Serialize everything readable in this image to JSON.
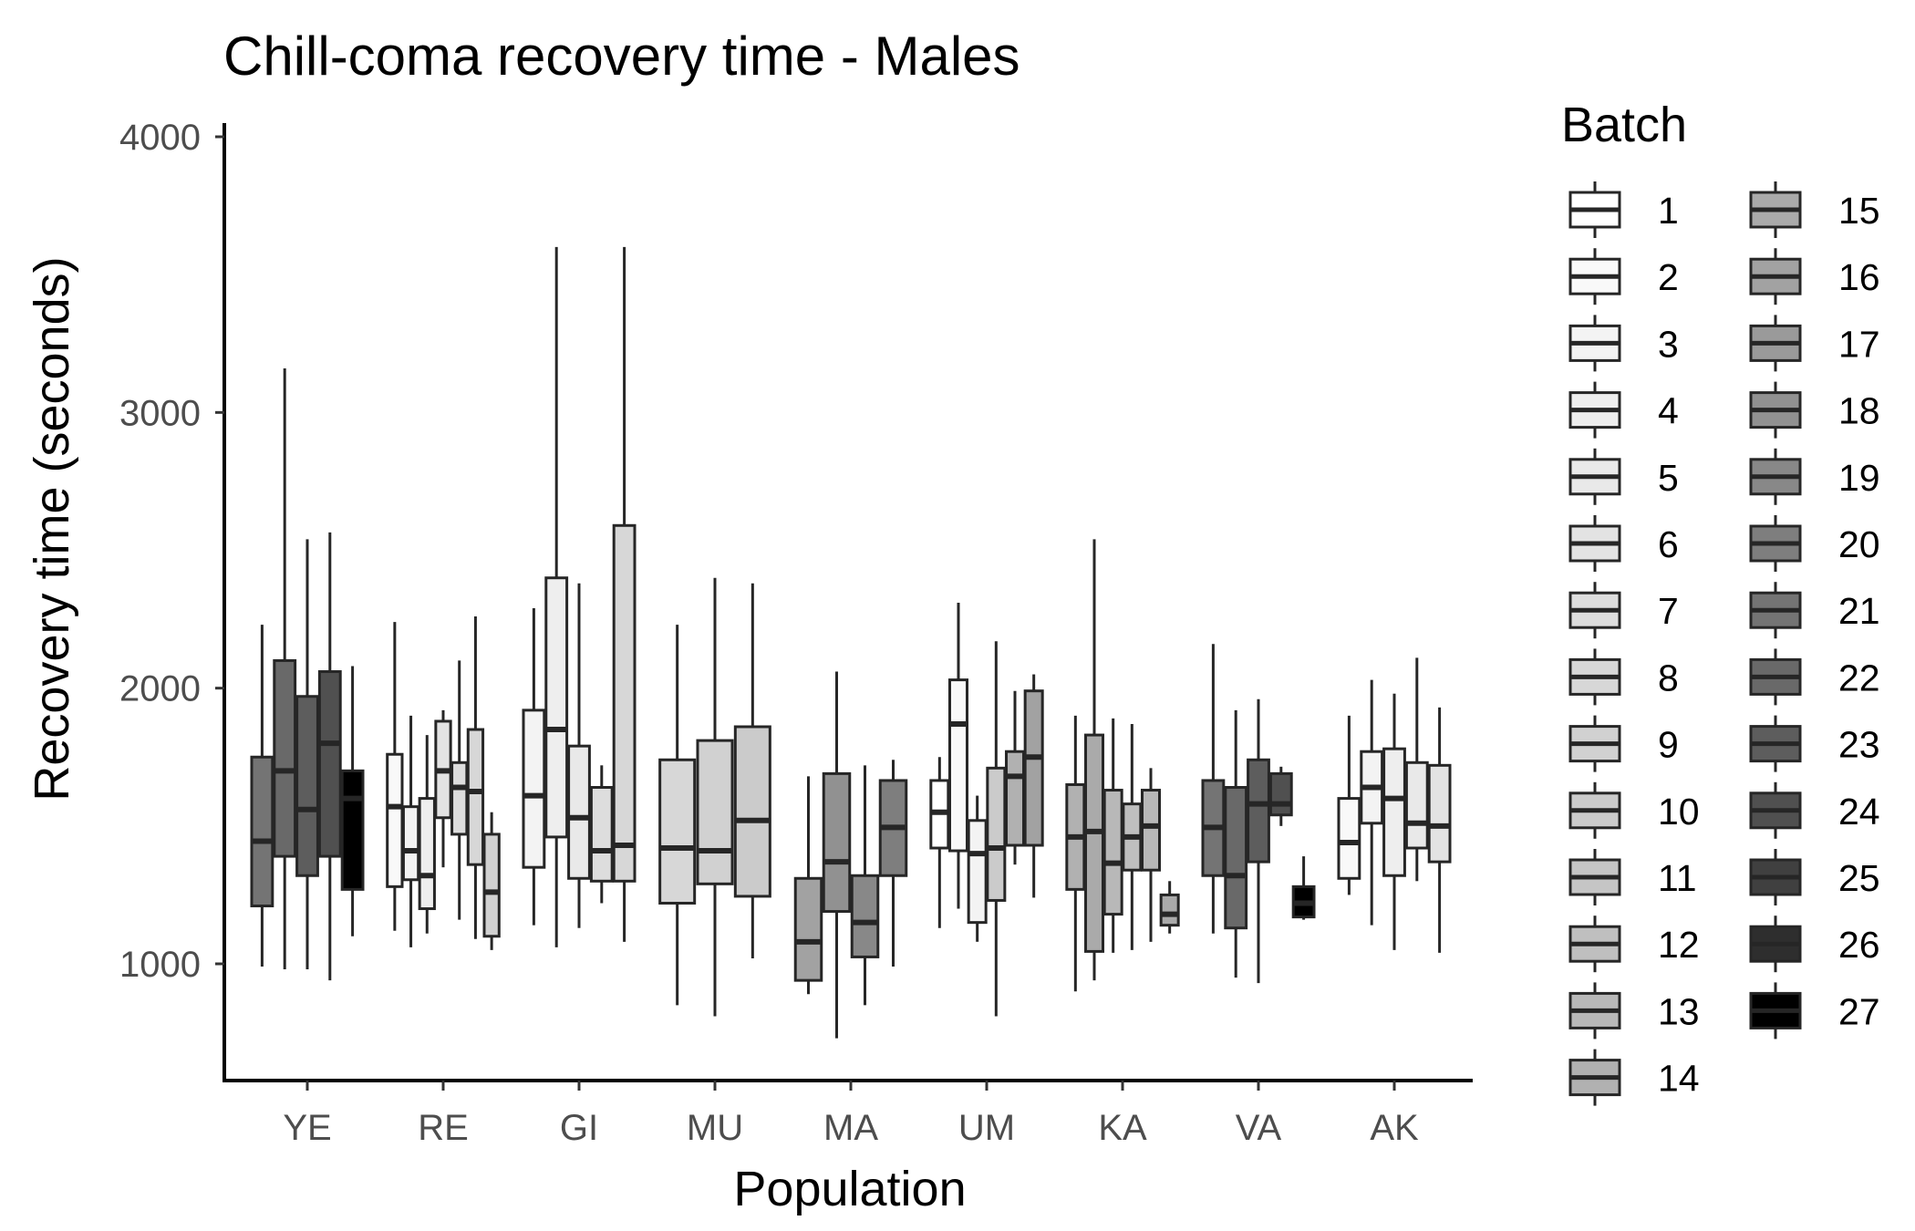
{
  "chart_data": {
    "type": "box",
    "title": "Chill-coma recovery time - Males",
    "xlabel": "Population",
    "ylabel": "Recovery time (seconds)",
    "ylim": [
      570,
      4030
    ],
    "yticks": [
      1000,
      2000,
      3000,
      4000
    ],
    "grid": false,
    "legend": {
      "title": "Batch",
      "position": "right",
      "columns": 2
    },
    "categories": [
      "YE",
      "RE",
      "GI",
      "MU",
      "MA",
      "UM",
      "KA",
      "VA",
      "AK"
    ],
    "batches": [
      "1",
      "2",
      "3",
      "4",
      "5",
      "6",
      "7",
      "8",
      "9",
      "10",
      "11",
      "12",
      "13",
      "14",
      "15",
      "16",
      "17",
      "18",
      "19",
      "20",
      "21",
      "22",
      "23",
      "24",
      "25",
      "26",
      "27"
    ],
    "batch_colors": [
      "#ffffff",
      "#f9f9f9",
      "#f3f3f3",
      "#eeeeee",
      "#e9e9e9",
      "#e3e3e3",
      "#dddddd",
      "#d7d7d7",
      "#d1d1d1",
      "#cbcbcb",
      "#c5c5c5",
      "#bfbfbf",
      "#b8b8b8",
      "#b1b1b1",
      "#aaaaaa",
      "#a2a2a2",
      "#9a9a9a",
      "#919191",
      "#888888",
      "#7e7e7e",
      "#747474",
      "#696969",
      "#5d5d5d",
      "#505050",
      "#404040",
      "#2e2e2e",
      "#000000"
    ],
    "groups": [
      {
        "population": "YE",
        "boxes": [
          {
            "batch": "21",
            "min": 990,
            "q1": 1210,
            "median": 1445,
            "q3": 1750,
            "max": 2230
          },
          {
            "batch": "22",
            "min": 980,
            "q1": 1390,
            "median": 1700,
            "q3": 2100,
            "max": 3160
          },
          {
            "batch": "23",
            "min": 980,
            "q1": 1320,
            "median": 1560,
            "q3": 1970,
            "max": 2540
          },
          {
            "batch": "24",
            "min": 940,
            "q1": 1390,
            "median": 1800,
            "q3": 2060,
            "max": 2565
          },
          {
            "batch": "27",
            "min": 1100,
            "q1": 1270,
            "median": 1600,
            "q3": 1700,
            "max": 2080
          }
        ]
      },
      {
        "population": "RE",
        "boxes": [
          {
            "batch": "2",
            "min": 1120,
            "q1": 1280,
            "median": 1570,
            "q3": 1760,
            "max": 2240
          },
          {
            "batch": "3",
            "min": 1060,
            "q1": 1305,
            "median": 1410,
            "q3": 1570,
            "max": 1900
          },
          {
            "batch": "4",
            "min": 1110,
            "q1": 1200,
            "median": 1320,
            "q3": 1600,
            "max": 1830
          },
          {
            "batch": "6",
            "min": 1350,
            "q1": 1530,
            "median": 1700,
            "q3": 1880,
            "max": 1920
          },
          {
            "batch": "7",
            "min": 1160,
            "q1": 1470,
            "median": 1640,
            "q3": 1730,
            "max": 2100
          },
          {
            "batch": "8",
            "min": 1090,
            "q1": 1360,
            "median": 1625,
            "q3": 1850,
            "max": 2260
          },
          {
            "batch": "9",
            "min": 1050,
            "q1": 1100,
            "median": 1260,
            "q3": 1470,
            "max": 1550
          }
        ]
      },
      {
        "population": "GI",
        "boxes": [
          {
            "batch": "3",
            "min": 1140,
            "q1": 1350,
            "median": 1610,
            "q3": 1920,
            "max": 2290
          },
          {
            "batch": "4",
            "min": 1060,
            "q1": 1460,
            "median": 1850,
            "q3": 2400,
            "max": 3600
          },
          {
            "batch": "5",
            "min": 1130,
            "q1": 1310,
            "median": 1530,
            "q3": 1790,
            "max": 2380
          },
          {
            "batch": "7",
            "min": 1220,
            "q1": 1300,
            "median": 1410,
            "q3": 1640,
            "max": 1720
          },
          {
            "batch": "8",
            "min": 1080,
            "q1": 1300,
            "median": 1430,
            "q3": 2590,
            "max": 3600
          }
        ]
      },
      {
        "population": "MU",
        "boxes": [
          {
            "batch": "8",
            "min": 850,
            "q1": 1220,
            "median": 1420,
            "q3": 1740,
            "max": 2230
          },
          {
            "batch": "9",
            "min": 810,
            "q1": 1290,
            "median": 1410,
            "q3": 1810,
            "max": 2400
          },
          {
            "batch": "10",
            "min": 1020,
            "q1": 1245,
            "median": 1520,
            "q3": 1860,
            "max": 2380
          }
        ]
      },
      {
        "population": "MA",
        "boxes": [
          {
            "batch": "16",
            "min": 890,
            "q1": 940,
            "median": 1080,
            "q3": 1310,
            "max": 1680
          },
          {
            "batch": "18",
            "min": 730,
            "q1": 1190,
            "median": 1370,
            "q3": 1690,
            "max": 2060
          },
          {
            "batch": "19",
            "min": 850,
            "q1": 1025,
            "median": 1150,
            "q3": 1320,
            "max": 1720
          },
          {
            "batch": "20",
            "min": 990,
            "q1": 1320,
            "median": 1495,
            "q3": 1665,
            "max": 1740
          }
        ]
      },
      {
        "population": "UM",
        "boxes": [
          {
            "batch": "1",
            "min": 1130,
            "q1": 1420,
            "median": 1550,
            "q3": 1665,
            "max": 1750
          },
          {
            "batch": "2",
            "min": 1200,
            "q1": 1410,
            "median": 1870,
            "q3": 2030,
            "max": 2310
          },
          {
            "batch": "3",
            "min": 1080,
            "q1": 1150,
            "median": 1400,
            "q3": 1520,
            "max": 1610
          },
          {
            "batch": "10",
            "min": 810,
            "q1": 1230,
            "median": 1420,
            "q3": 1710,
            "max": 2170
          },
          {
            "batch": "14",
            "min": 1360,
            "q1": 1430,
            "median": 1680,
            "q3": 1770,
            "max": 1990
          },
          {
            "batch": "16",
            "min": 1240,
            "q1": 1430,
            "median": 1750,
            "q3": 1990,
            "max": 2050
          }
        ]
      },
      {
        "population": "KA",
        "boxes": [
          {
            "batch": "14",
            "min": 900,
            "q1": 1270,
            "median": 1460,
            "q3": 1650,
            "max": 1900
          },
          {
            "batch": "15",
            "min": 940,
            "q1": 1045,
            "median": 1480,
            "q3": 1830,
            "max": 2540
          },
          {
            "batch": "13",
            "min": 1040,
            "q1": 1180,
            "median": 1365,
            "q3": 1630,
            "max": 1890
          },
          {
            "batch": "12",
            "min": 1050,
            "q1": 1340,
            "median": 1460,
            "q3": 1580,
            "max": 1870
          },
          {
            "batch": "13",
            "min": 1080,
            "q1": 1340,
            "median": 1500,
            "q3": 1630,
            "max": 1710
          },
          {
            "batch": "15",
            "min": 1110,
            "q1": 1140,
            "median": 1180,
            "q3": 1250,
            "max": 1300
          }
        ]
      },
      {
        "population": "VA",
        "boxes": [
          {
            "batch": "21",
            "min": 1110,
            "q1": 1320,
            "median": 1495,
            "q3": 1665,
            "max": 2160
          },
          {
            "batch": "22",
            "min": 950,
            "q1": 1130,
            "median": 1320,
            "q3": 1640,
            "max": 1920
          },
          {
            "batch": "23",
            "min": 930,
            "q1": 1370,
            "median": 1580,
            "q3": 1740,
            "max": 1960
          },
          {
            "batch": "24",
            "min": 1500,
            "q1": 1540,
            "median": 1580,
            "q3": 1690,
            "max": 1715
          },
          {
            "batch": "27",
            "min": 1160,
            "q1": 1170,
            "median": 1220,
            "q3": 1280,
            "max": 1390
          }
        ]
      },
      {
        "population": "AK",
        "boxes": [
          {
            "batch": "2",
            "min": 1250,
            "q1": 1310,
            "median": 1440,
            "q3": 1600,
            "max": 1900
          },
          {
            "batch": "3",
            "min": 1140,
            "q1": 1510,
            "median": 1640,
            "q3": 1770,
            "max": 2030
          },
          {
            "batch": "4",
            "min": 1050,
            "q1": 1320,
            "median": 1600,
            "q3": 1780,
            "max": 1980
          },
          {
            "batch": "5",
            "min": 1300,
            "q1": 1420,
            "median": 1510,
            "q3": 1730,
            "max": 2110
          },
          {
            "batch": "6",
            "min": 1040,
            "q1": 1370,
            "median": 1500,
            "q3": 1720,
            "max": 1930
          }
        ]
      }
    ]
  }
}
